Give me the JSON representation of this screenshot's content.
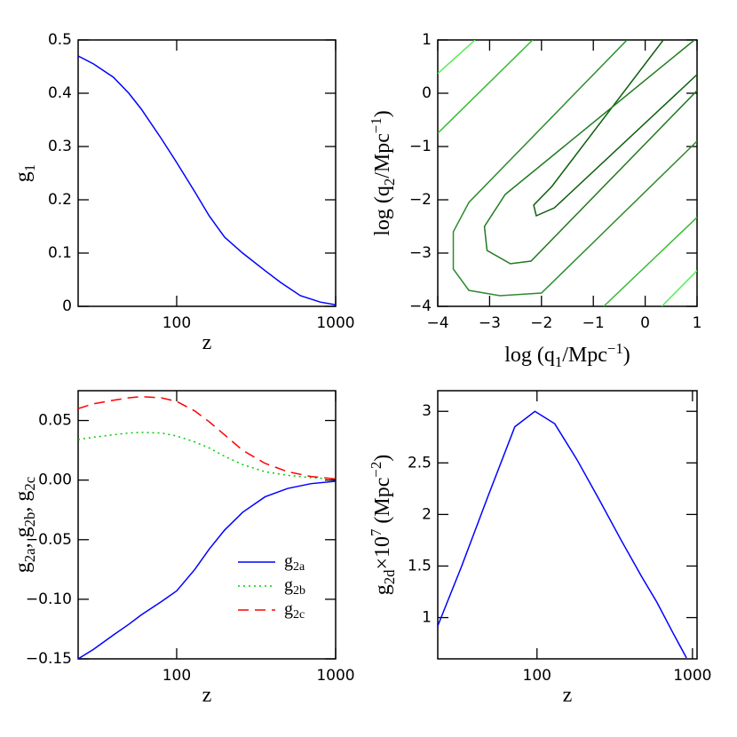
{
  "chart_data": [
    {
      "type": "line",
      "x_label": [
        {
          "text": "z"
        }
      ],
      "y_label": [
        {
          "text": "g"
        },
        {
          "text": "1",
          "sub": true
        }
      ],
      "x": [
        24,
        30,
        40,
        50,
        60,
        80,
        100,
        130,
        160,
        200,
        260,
        360,
        450,
        600,
        800,
        1000
      ],
      "series": [
        {
          "color": "#0000ff",
          "style": "solid",
          "values": [
            0.47,
            0.455,
            0.43,
            0.4,
            0.37,
            0.315,
            0.27,
            0.215,
            0.17,
            0.13,
            0.1,
            0.067,
            0.045,
            0.02,
            0.008,
            0.003
          ]
        }
      ],
      "xlim": [
        24,
        1000
      ],
      "ylim": [
        0,
        0.5
      ],
      "log_x": true,
      "xticks": [
        100,
        1000
      ],
      "yticks": [
        0,
        0.1,
        0.2,
        0.3,
        0.4,
        0.5
      ]
    },
    {
      "type": "contour",
      "x_label": [
        {
          "text": "log (q"
        },
        {
          "text": "1",
          "sub": true
        },
        {
          "text": "/Mpc"
        },
        {
          "text": "−1",
          "sup": true
        },
        {
          "text": ")"
        }
      ],
      "y_label": [
        {
          "text": "log (q"
        },
        {
          "text": "2",
          "sub": true
        },
        {
          "text": "/Mpc"
        },
        {
          "text": "−1",
          "sup": true
        },
        {
          "text": ")"
        }
      ],
      "series": [
        {
          "color": "#0b5e0b",
          "x": [
            0.35,
            -1.8,
            -2.15,
            -2.1,
            -1.75,
            1
          ],
          "y": [
            1,
            -1.75,
            -2.1,
            -2.3,
            -2.15,
            0.35
          ]
        },
        {
          "color": "#1f7a1f",
          "x": [
            0.95,
            -2.7,
            -3.1,
            -3.05,
            -2.6,
            -2.2,
            1
          ],
          "y": [
            1,
            -1.9,
            -2.5,
            -2.95,
            -3.2,
            -3.15,
            0.05
          ]
        },
        {
          "color": "#2e8b2e",
          "x": [
            -0.35,
            -3.4,
            -3.7,
            -3.7,
            -3.4,
            -2.8,
            -2.0,
            1
          ],
          "y": [
            1,
            -2.05,
            -2.6,
            -3.3,
            -3.7,
            -3.8,
            -3.75,
            -0.9
          ]
        },
        {
          "color": "#33bb33",
          "x": [
            -4,
            -2.17
          ],
          "y": [
            -0.75,
            1
          ]
        },
        {
          "color": "#33bb33",
          "x": [
            -0.8,
            1
          ],
          "y": [
            -4,
            -2.33
          ]
        },
        {
          "color": "#55ee55",
          "x": [
            -4,
            -3.28
          ],
          "y": [
            0.37,
            1
          ]
        },
        {
          "color": "#55ee55",
          "x": [
            0.32,
            1
          ],
          "y": [
            -4,
            -3.33
          ]
        }
      ],
      "xlim": [
        -4,
        1
      ],
      "ylim": [
        -4,
        1
      ],
      "xticks": [
        {
          "value": -4,
          "label": "−4"
        },
        {
          "value": -3,
          "label": "−3"
        },
        {
          "value": -2,
          "label": "−2"
        },
        {
          "value": -1,
          "label": "−1"
        },
        0,
        1
      ],
      "yticks": [
        {
          "value": -4,
          "label": "−4"
        },
        {
          "value": -3,
          "label": "−3"
        },
        {
          "value": -2,
          "label": "−2"
        },
        {
          "value": -1,
          "label": "−1"
        },
        0,
        1
      ]
    },
    {
      "type": "line",
      "x_label": [
        {
          "text": "z"
        }
      ],
      "y_label": [
        {
          "text": "g"
        },
        {
          "text": "2a",
          "sub": true
        },
        {
          "text": ", g"
        },
        {
          "text": "2b",
          "sub": true
        },
        {
          "text": ", g"
        },
        {
          "text": "2c",
          "sub": true
        }
      ],
      "x": [
        24,
        30,
        40,
        50,
        60,
        80,
        100,
        130,
        160,
        200,
        260,
        360,
        500,
        700,
        1000
      ],
      "series": [
        {
          "name": [
            {
              "text": "g"
            },
            {
              "text": "2a",
              "sub": true
            }
          ],
          "color": "#0000ff",
          "style": "solid",
          "values": [
            -0.15,
            -0.142,
            -0.13,
            -0.121,
            -0.113,
            -0.102,
            -0.093,
            -0.075,
            -0.058,
            -0.042,
            -0.027,
            -0.014,
            -0.007,
            -0.003,
            -0.001
          ]
        },
        {
          "name": [
            {
              "text": "g"
            },
            {
              "text": "2b",
              "sub": true
            }
          ],
          "color": "#00cc00",
          "style": "dotted",
          "values": [
            0.034,
            0.036,
            0.038,
            0.0395,
            0.04,
            0.0395,
            0.037,
            0.032,
            0.027,
            0.02,
            0.013,
            0.007,
            0.004,
            0.002,
            0.001
          ]
        },
        {
          "name": [
            {
              "text": "g"
            },
            {
              "text": "2c",
              "sub": true
            }
          ],
          "color": "#ff0000",
          "style": "dashed",
          "values": [
            0.06,
            0.064,
            0.067,
            0.069,
            0.07,
            0.069,
            0.066,
            0.058,
            0.049,
            0.038,
            0.025,
            0.014,
            0.007,
            0.003,
            0.001
          ]
        }
      ],
      "xlim": [
        24,
        1000
      ],
      "ylim": [
        -0.15,
        0.075
      ],
      "log_x": true,
      "legend": "lower right",
      "xticks": [
        100,
        1000
      ],
      "yticks": [
        {
          "value": -0.15,
          "label": "−0.15"
        },
        {
          "value": -0.1,
          "label": "−0.10"
        },
        {
          "value": -0.05,
          "label": "−0.05"
        },
        {
          "value": 0,
          "label": "0.00"
        },
        0.05
      ]
    },
    {
      "type": "line",
      "x_label": [
        {
          "text": "z"
        }
      ],
      "y_label": [
        {
          "text": "g"
        },
        {
          "text": "2d",
          "sub": true
        },
        {
          "text": "×10"
        },
        {
          "text": "7",
          "sup": true
        },
        {
          "text": " (Mpc"
        },
        {
          "text": "−2",
          "sup": true
        },
        {
          "text": ")"
        }
      ],
      "x": [
        23,
        32.6,
        48.5,
        72,
        97,
        130,
        181,
        250,
        348,
        470,
        590,
        750,
        915
      ],
      "series": [
        {
          "color": "#0000ff",
          "style": "solid",
          "values": [
            0.92,
            1.49,
            2.18,
            2.85,
            3.0,
            2.88,
            2.53,
            2.15,
            1.75,
            1.4,
            1.15,
            0.85,
            0.61
          ]
        }
      ],
      "xlim": [
        23,
        1070
      ],
      "ylim": [
        0.6,
        3.2
      ],
      "log_x": true,
      "xticks": [
        100,
        1000
      ],
      "yticks": [
        1,
        1.5,
        2,
        2.5,
        3
      ]
    }
  ]
}
